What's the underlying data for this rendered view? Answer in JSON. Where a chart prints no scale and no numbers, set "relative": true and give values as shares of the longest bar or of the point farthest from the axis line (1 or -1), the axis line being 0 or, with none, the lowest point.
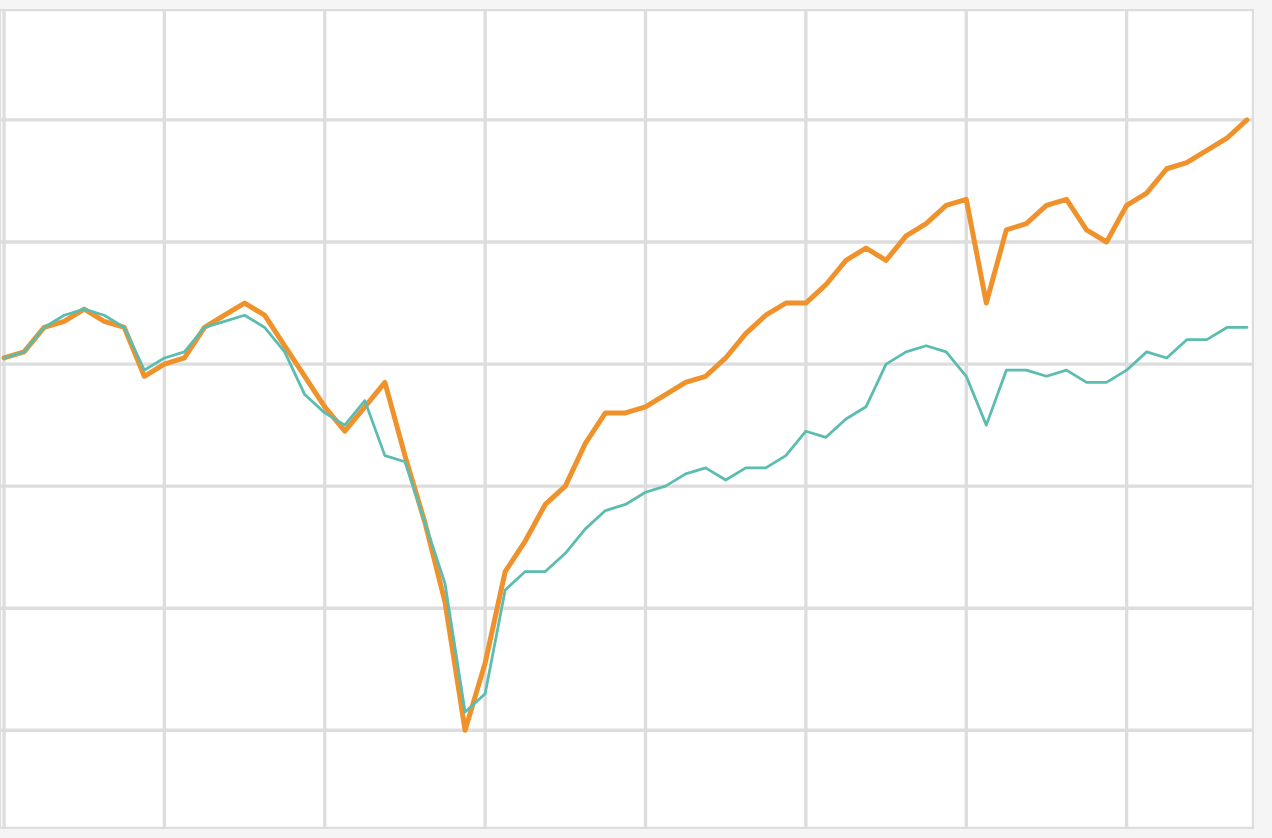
{
  "chart_data": {
    "type": "line",
    "relative": true,
    "grid": true,
    "marker": "none",
    "line_style": "solid",
    "categories": [
      null,
      null,
      null,
      null,
      null,
      null,
      null,
      null,
      null,
      null,
      null,
      null,
      null,
      null,
      null,
      null,
      null,
      null,
      null,
      null,
      null,
      null,
      null,
      null,
      null,
      null,
      null,
      null,
      null,
      null,
      null,
      null,
      null,
      null,
      null,
      null,
      null,
      null,
      null,
      null,
      null,
      null,
      null,
      null,
      null,
      null,
      null,
      null,
      null,
      null,
      null,
      null,
      null,
      null,
      null,
      null,
      null,
      null,
      null,
      null,
      null,
      null,
      null
    ],
    "series": [
      {
        "color": "#f0922b",
        "values": [
          0.61,
          0.62,
          0.66,
          0.67,
          0.69,
          0.67,
          0.66,
          0.58,
          0.6,
          0.61,
          0.66,
          0.68,
          0.7,
          0.68,
          0.63,
          0.58,
          0.53,
          0.49,
          0.53,
          0.57,
          0.45,
          0.34,
          0.21,
          0,
          0.11,
          0.26,
          0.31,
          0.37,
          0.4,
          0.47,
          0.52,
          0.52,
          0.53,
          0.55,
          0.57,
          0.58,
          0.61,
          0.65,
          0.68,
          0.7,
          0.7,
          0.73,
          0.77,
          0.79,
          0.77,
          0.81,
          0.83,
          0.86,
          0.87,
          0.7,
          0.82,
          0.83,
          0.86,
          0.87,
          0.82,
          0.8,
          0.86,
          0.88,
          0.92,
          0.93,
          0.95,
          0.97,
          1
        ]
      },
      {
        "color": "#5bbcb0",
        "values": [
          0.61,
          0.62,
          0.66,
          0.68,
          0.69,
          0.68,
          0.66,
          0.59,
          0.61,
          0.62,
          0.66,
          0.67,
          0.68,
          0.66,
          0.62,
          0.55,
          0.52,
          0.5,
          0.54,
          0.45,
          0.44,
          0.34,
          0.24,
          0.03,
          0.06,
          0.23,
          0.26,
          0.26,
          0.29,
          0.33,
          0.36,
          0.37,
          0.39,
          0.4,
          0.42,
          0.43,
          0.41,
          0.43,
          0.43,
          0.45,
          0.49,
          0.48,
          0.51,
          0.53,
          0.6,
          0.62,
          0.63,
          0.62,
          0.58,
          0.5,
          0.59,
          0.59,
          0.58,
          0.59,
          0.57,
          0.57,
          0.59,
          0.62,
          0.61,
          0.64,
          0.64,
          0.66,
          0.66
        ]
      }
    ]
  }
}
